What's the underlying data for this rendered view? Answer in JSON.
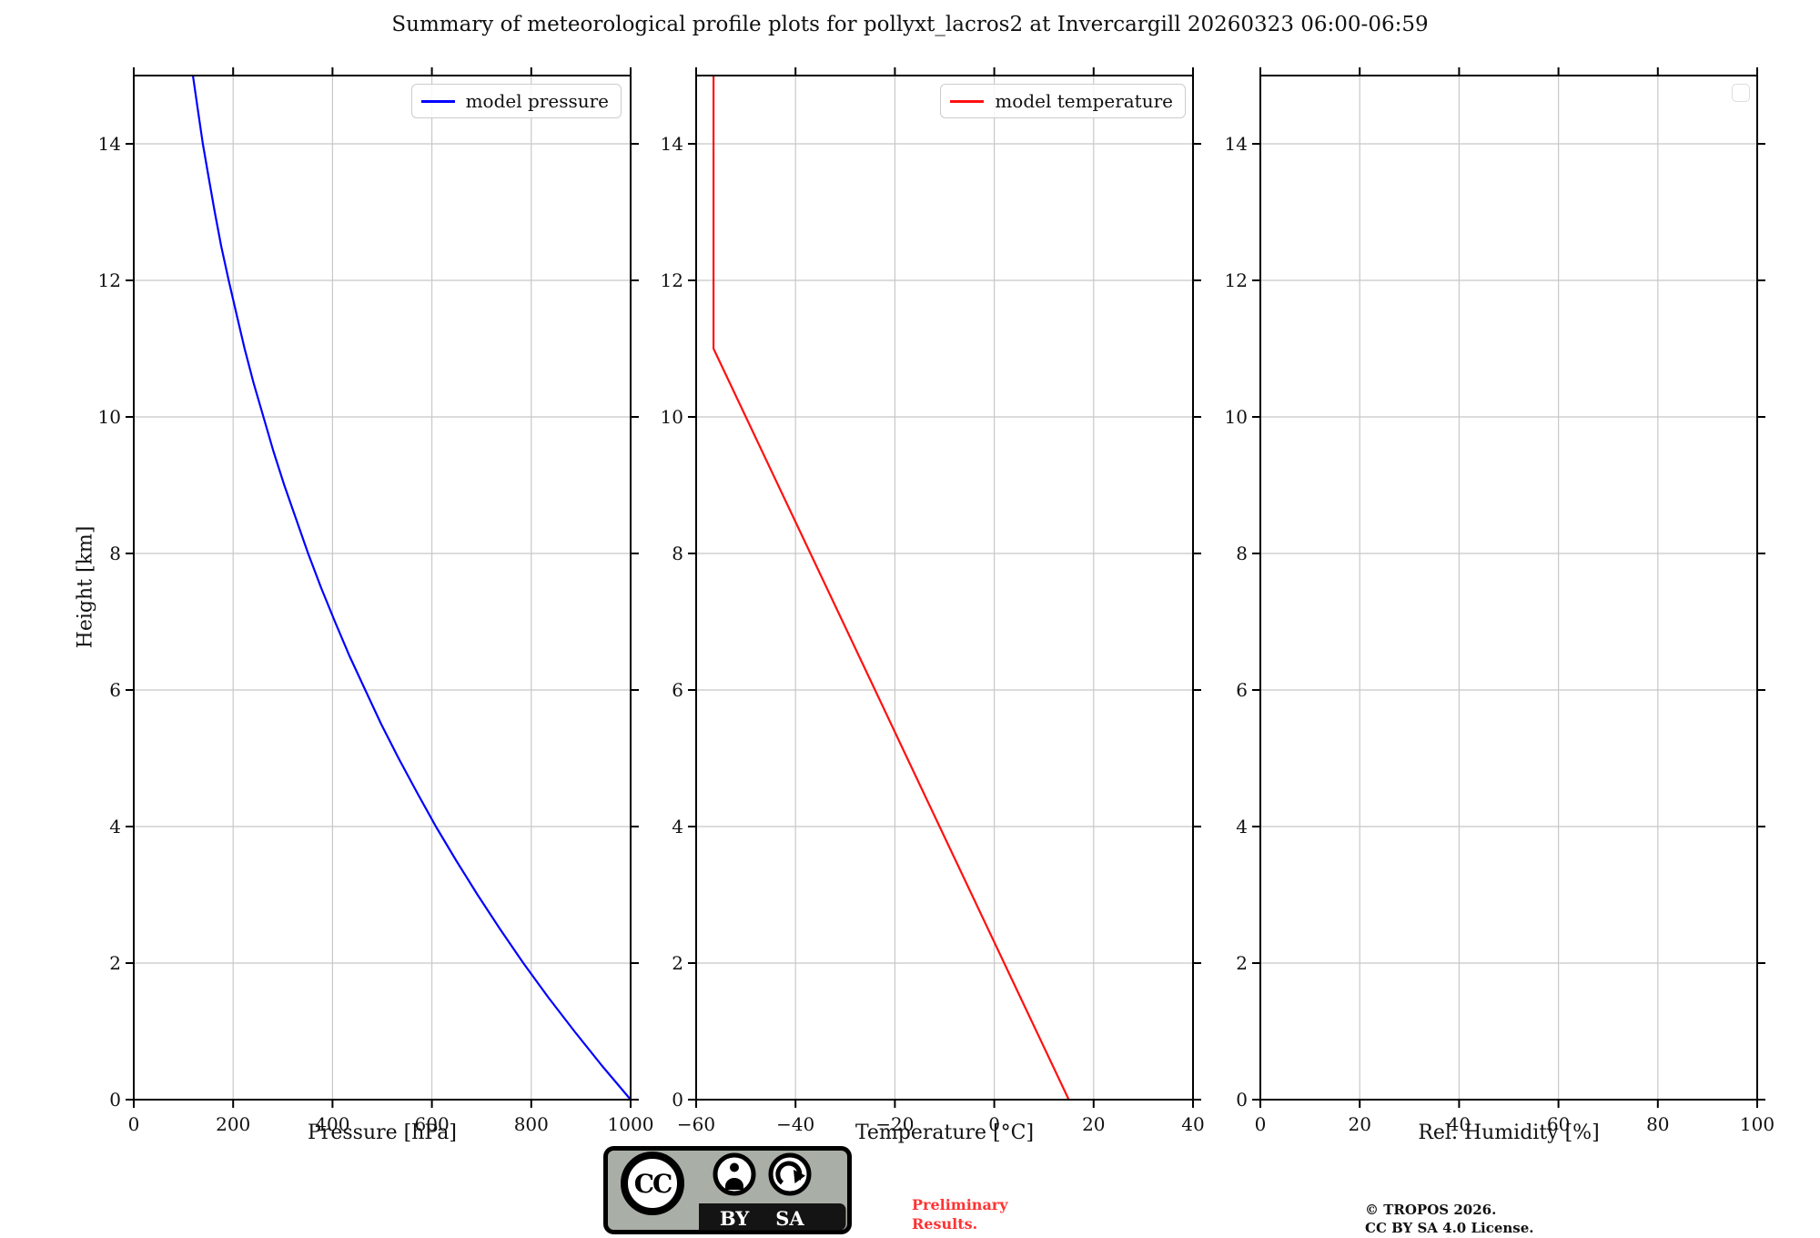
{
  "title": "Summary of meteorological profile plots for pollyxt_lacros2 at Invercargill 20260323 06:00-06:59",
  "footer": {
    "preliminary": "Preliminary\nResults.",
    "preliminary_color": "#ff3333",
    "attribution": "© TROPOS 2026.\nCC BY SA 4.0 License.",
    "license_badge": {
      "cc_label": "CC",
      "by_label": "BY",
      "sa_label": "SA"
    }
  },
  "chart_data": {
    "type": "line",
    "title": "Summary of meteorological profile plots for pollyxt_lacros2 at Invercargill 20260323 06:00-06:59",
    "ylabel": "Height [km]",
    "ylim": [
      0,
      15
    ],
    "yticks": [
      0,
      2,
      4,
      6,
      8,
      10,
      12,
      14
    ],
    "grid": true,
    "grid_color": "#c8c8c8",
    "panels": [
      {
        "id": "pressure",
        "xlabel": "Pressure [hPa]",
        "xlim": [
          0,
          1000
        ],
        "xticks": [
          0,
          200,
          400,
          600,
          800,
          1000
        ],
        "line_color": "#0000ff",
        "legend": {
          "label": "model pressure",
          "position": "upper right"
        },
        "series": [
          {
            "name": "model pressure",
            "color": "#0000ff",
            "height_km": [
              0,
              0.5,
              1,
              1.5,
              2,
              2.5,
              3,
              3.5,
              4,
              4.5,
              5,
              5.5,
              6,
              6.5,
              7,
              7.5,
              8,
              8.5,
              9,
              9.5,
              10,
              10.5,
              11,
              11.5,
              12,
              12.5,
              13,
              13.5,
              14,
              14.5,
              15
            ],
            "values": [
              1000,
              942,
              887,
              834,
              784,
              737,
              692,
              649,
              608,
              570,
              533,
              498,
              466,
              434,
              405,
              377,
              351,
              327,
              303,
              281,
              261,
              241,
              223,
              207,
              191,
              176,
              163,
              151,
              139,
              129,
              119
            ]
          }
        ]
      },
      {
        "id": "temperature",
        "xlabel": "Temperature [°C]",
        "xlim": [
          -60,
          40
        ],
        "xticks": [
          -60,
          -40,
          -20,
          0,
          20,
          40
        ],
        "line_color": "#ff1010",
        "legend": {
          "label": "model temperature",
          "position": "upper right"
        },
        "series": [
          {
            "name": "model temperature",
            "color": "#ff1010",
            "height_km": [
              0,
              1,
              2,
              3,
              4,
              5,
              6,
              7,
              8,
              9,
              10,
              11,
              12,
              13,
              14,
              15
            ],
            "values": [
              15,
              8.5,
              2,
              -4.5,
              -11,
              -17.5,
              -24,
              -30.5,
              -37,
              -43.5,
              -50,
              -56.5,
              -56.5,
              -56.5,
              -56.5,
              -56.5
            ]
          }
        ]
      },
      {
        "id": "humidity",
        "xlabel": "Rel. Humidity [%]",
        "xlim": [
          0,
          100
        ],
        "xticks": [
          0,
          20,
          40,
          60,
          80,
          100
        ],
        "line_color": "#000000",
        "legend": {
          "label": "",
          "empty": true
        },
        "series": []
      }
    ]
  }
}
